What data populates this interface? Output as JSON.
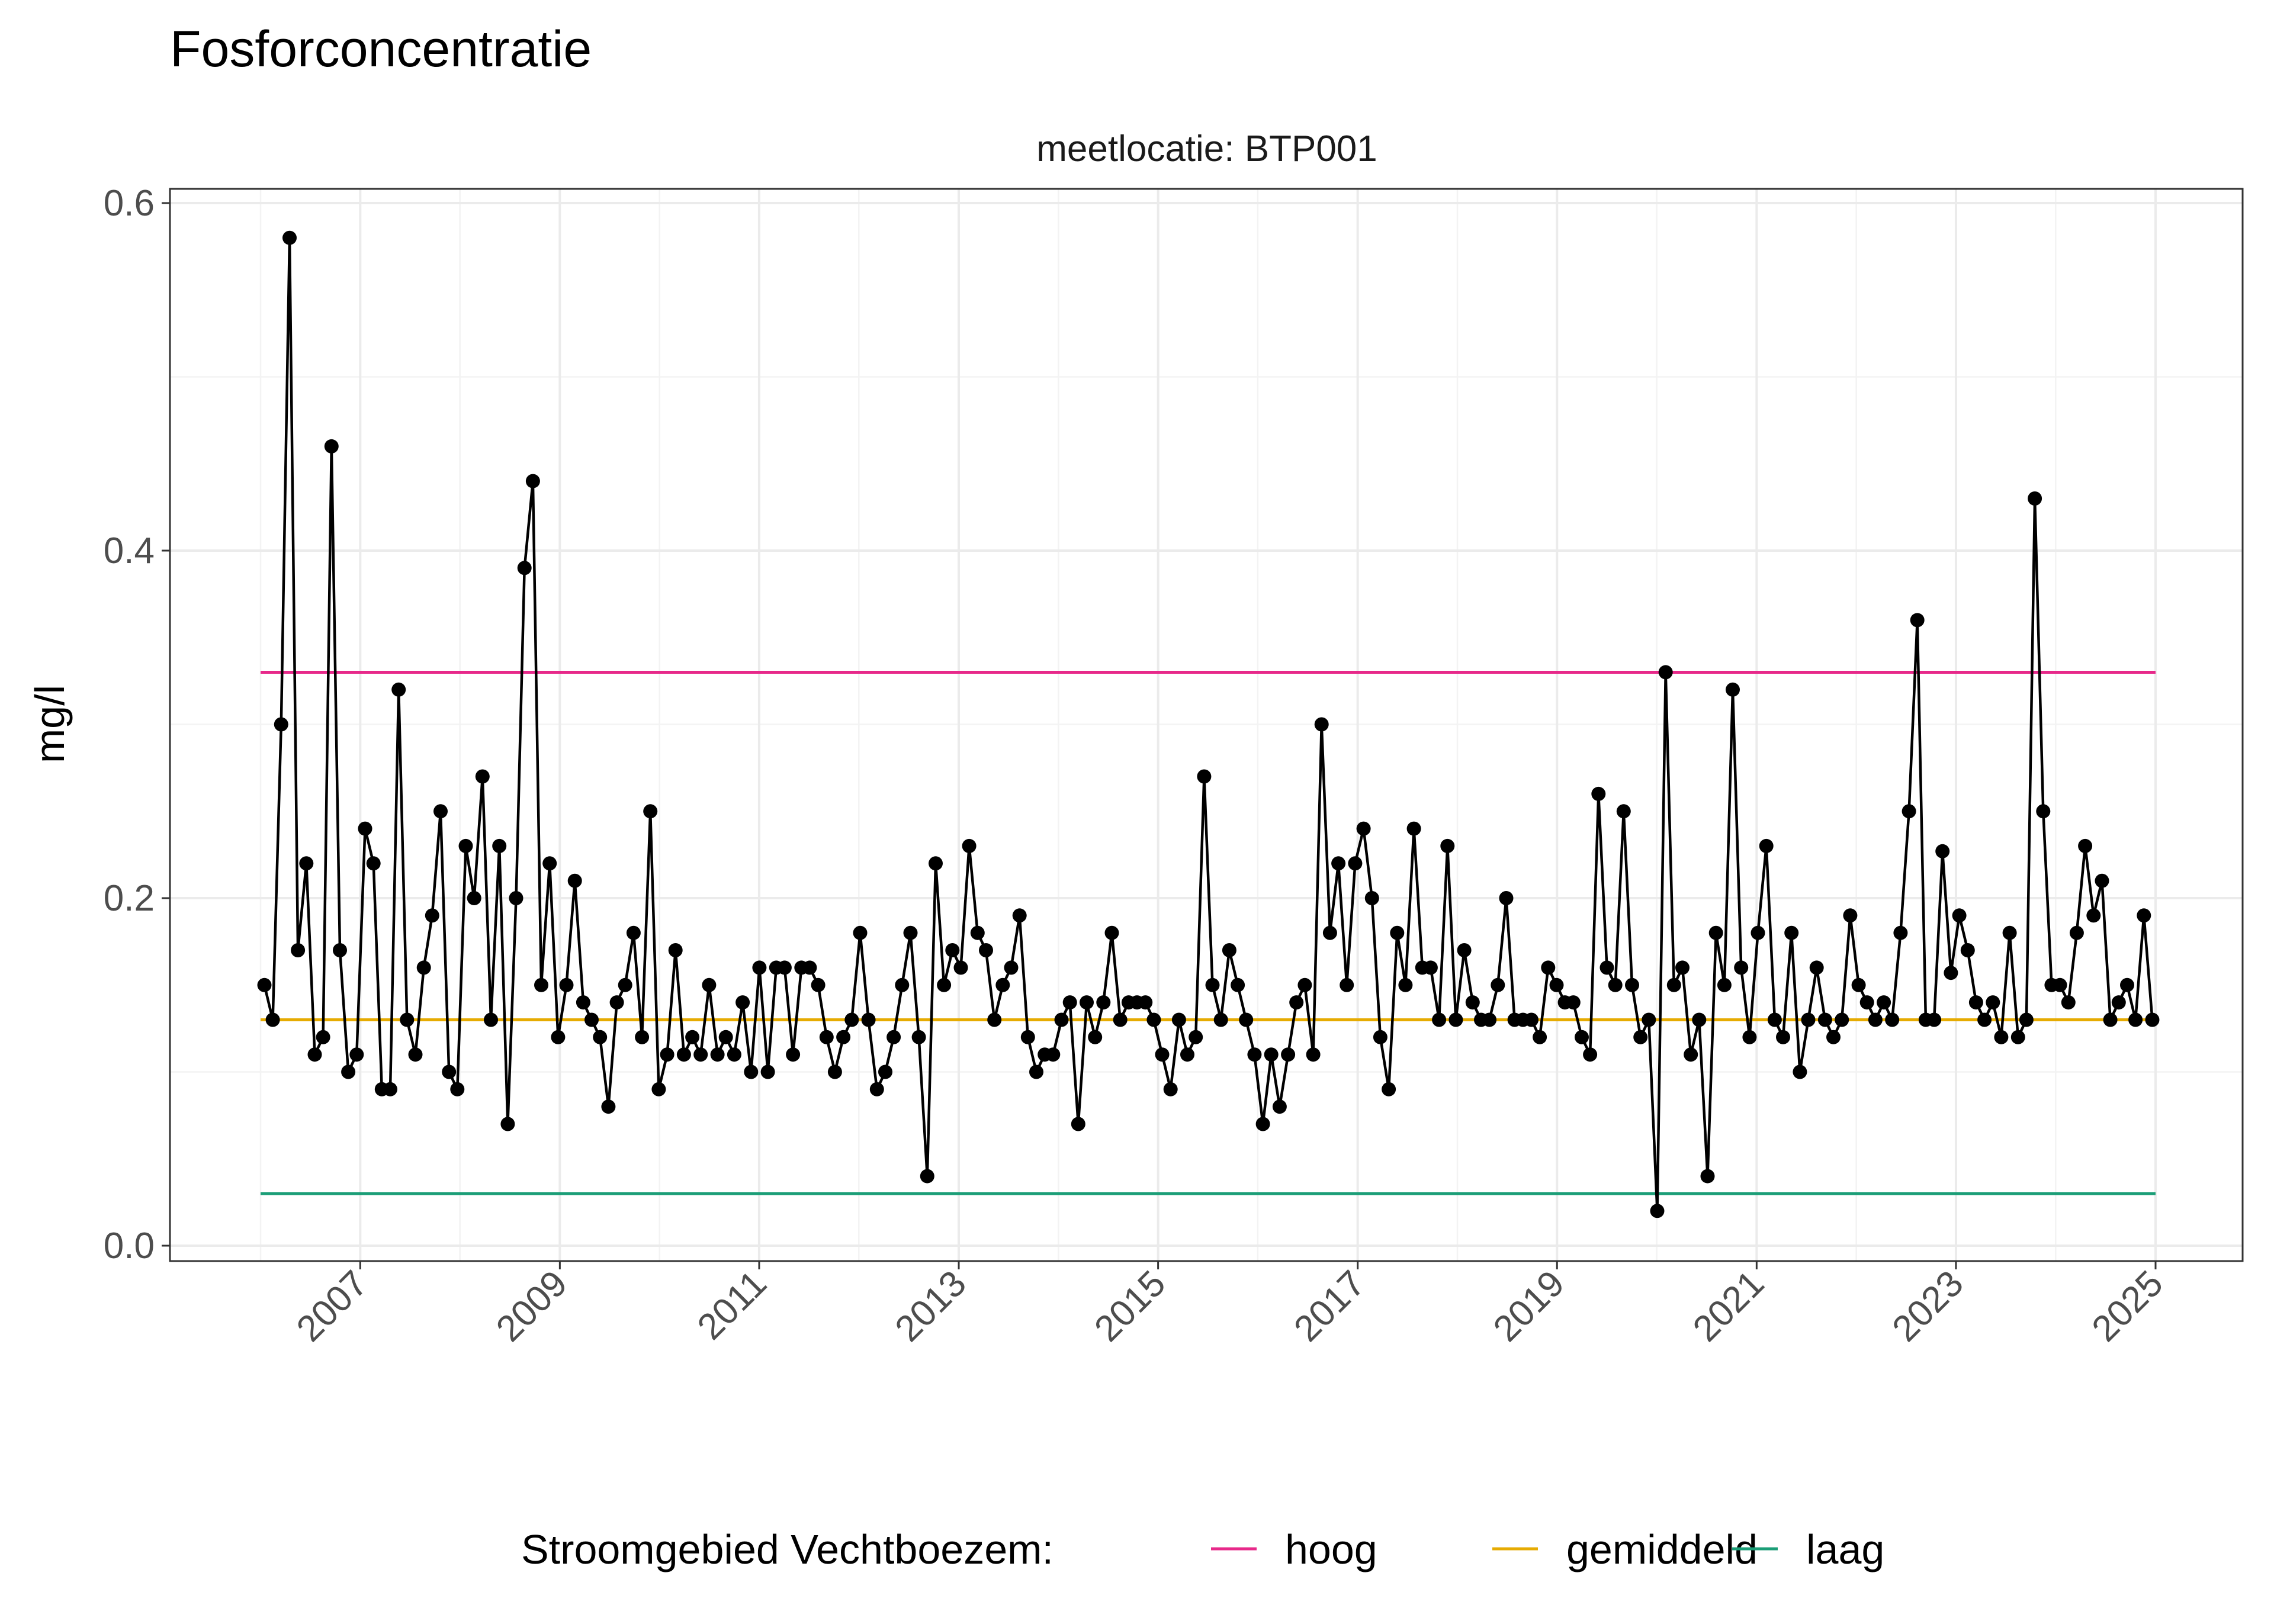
{
  "chart_data": {
    "type": "line",
    "title": "Fosforconcentratie",
    "facet_label": "meetlocatie: BTP001",
    "xlabel": "",
    "ylabel": "mg/l",
    "ylim": [
      0,
      0.6
    ],
    "xlim": [
      "2006-01-01",
      "2025-01-01"
    ],
    "x_ticks": [
      "2007",
      "2009",
      "2011",
      "2013",
      "2015",
      "2017",
      "2019",
      "2021",
      "2023",
      "2025"
    ],
    "y_ticks": [
      "0.0",
      "0.2",
      "0.4",
      "0.6"
    ],
    "grid": true,
    "legend_position": "bottom",
    "legend": {
      "title": "Stroomgebied Vechtboezem:",
      "entries": [
        {
          "label": "hoog",
          "color": "#e7298a"
        },
        {
          "label": "gemiddeld",
          "color": "#e6ab02"
        },
        {
          "label": "laag",
          "color": "#1b9e77"
        }
      ]
    },
    "reference_lines": [
      {
        "name": "hoog",
        "value": 0.33,
        "color": "#e7298a"
      },
      {
        "name": "gemiddeld",
        "value": 0.13,
        "color": "#e6ab02"
      },
      {
        "name": "laag",
        "value": 0.03,
        "color": "#1b9e77"
      }
    ],
    "series": [
      {
        "color": "#000000",
        "values": [
          0.15,
          0.13,
          0.3,
          0.58,
          0.17,
          0.22,
          0.11,
          0.12,
          0.46,
          0.17,
          0.1,
          0.11,
          0.24,
          0.22,
          0.09,
          0.09,
          0.32,
          0.13,
          0.11,
          0.16,
          0.19,
          0.25,
          0.1,
          0.09,
          0.23,
          0.2,
          0.27,
          0.13,
          0.23,
          0.07,
          0.2,
          0.39,
          0.44,
          0.15,
          0.22,
          0.12,
          0.15,
          0.21,
          0.14,
          0.13,
          0.12,
          0.08,
          0.14,
          0.15,
          0.18,
          0.12,
          0.25,
          0.09,
          0.11,
          0.17,
          0.11,
          0.12,
          0.11,
          0.15,
          0.11,
          0.12,
          0.11,
          0.14,
          0.1,
          0.16,
          0.1,
          0.16,
          0.16,
          0.11,
          0.16,
          0.16,
          0.15,
          0.12,
          0.1,
          0.12,
          0.13,
          0.18,
          0.13,
          0.09,
          0.1,
          0.12,
          0.15,
          0.18,
          0.12,
          0.04,
          0.22,
          0.15,
          0.17,
          0.16,
          0.23,
          0.18,
          0.17,
          0.13,
          0.15,
          0.16,
          0.19,
          0.12,
          0.1,
          0.11,
          0.11,
          0.13,
          0.14,
          0.07,
          0.14,
          0.12,
          0.14,
          0.18,
          0.13,
          0.14,
          0.14,
          0.14,
          0.13,
          0.11,
          0.09,
          0.13,
          0.11,
          0.12,
          0.27,
          0.15,
          0.13,
          0.17,
          0.15,
          0.13,
          0.11,
          0.07,
          0.11,
          0.08,
          0.11,
          0.14,
          0.15,
          0.11,
          0.3,
          0.18,
          0.22,
          0.15,
          0.22,
          0.24,
          0.2,
          0.12,
          0.09,
          0.18,
          0.15,
          0.24,
          0.16,
          0.16,
          0.13,
          0.23,
          0.13,
          0.17,
          0.14,
          0.13,
          0.13,
          0.15,
          0.2,
          0.13,
          0.13,
          0.13,
          0.12,
          0.16,
          0.15,
          0.14,
          0.14,
          0.12,
          0.11,
          0.26,
          0.16,
          0.15,
          0.25,
          0.15,
          0.12,
          0.13,
          0.02,
          0.33,
          0.15,
          0.16,
          0.11,
          0.13,
          0.04,
          0.18,
          0.15,
          0.32,
          0.16,
          0.12,
          0.18,
          0.23,
          0.13,
          0.12,
          0.18,
          0.1,
          0.13,
          0.16,
          0.13,
          0.12,
          0.13,
          0.19,
          0.15,
          0.14,
          0.13,
          0.14,
          0.13,
          0.18,
          0.25,
          0.36,
          0.13,
          0.13,
          0.227,
          0.157,
          0.19,
          0.17,
          0.14,
          0.13,
          0.14,
          0.12,
          0.18,
          0.12,
          0.13,
          0.43,
          0.25,
          0.15,
          0.15,
          0.14,
          0.18,
          0.23,
          0.19,
          0.21,
          0.13,
          0.14,
          0.15,
          0.13,
          0.19,
          0.13
        ]
      }
    ]
  }
}
